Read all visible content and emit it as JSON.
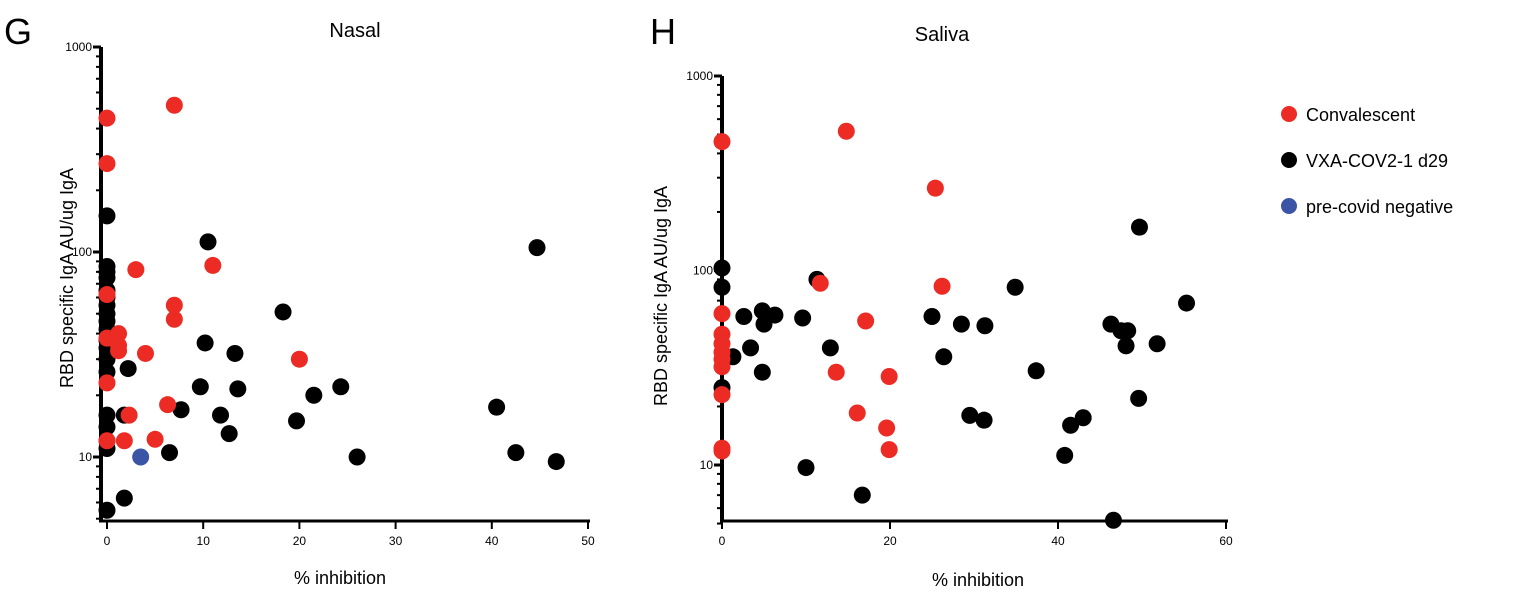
{
  "colors": {
    "Convalescent": "#ec2b24",
    "VXA-COV2-1 d29": "#000000",
    "pre-covid negative": "#3b55a6"
  },
  "legend": {
    "placement": "right",
    "entries": [
      {
        "label": "Convalescent",
        "color": "#ec2b24"
      },
      {
        "label": "VXA-COV2-1 d29",
        "color": "#000000"
      },
      {
        "label": "pre-covid negative",
        "color": "#3b55a6"
      }
    ]
  },
  "chart_data": [
    {
      "panel": "G",
      "type": "scatter",
      "title": "Nasal",
      "xlabel": "% inhibition",
      "ylabel": "RBD specific IgA AU/ug IgA",
      "xlim": [
        0,
        50
      ],
      "ylim": [
        5,
        1000
      ],
      "y_scale": "log",
      "xticks": [
        "0",
        "10",
        "20",
        "30",
        "40",
        "50"
      ],
      "yticks": [
        "10",
        "100",
        "1000"
      ],
      "grid": false,
      "series": [
        {
          "name": "Convalescent",
          "points": [
            [
              0,
              450
            ],
            [
              0,
              270
            ],
            [
              0,
              62
            ],
            [
              0,
              38
            ],
            [
              0,
              23
            ],
            [
              0,
              12
            ],
            [
              7,
              520
            ],
            [
              3,
              82
            ],
            [
              11,
              86
            ],
            [
              7,
              55
            ],
            [
              7,
              47
            ],
            [
              1.2,
              40
            ],
            [
              1.2,
              35
            ],
            [
              1.2,
              33
            ],
            [
              4,
              32
            ],
            [
              20,
              30
            ],
            [
              6.3,
              18
            ],
            [
              2.3,
              16
            ],
            [
              5,
              12.2
            ],
            [
              1.8,
              12
            ]
          ]
        },
        {
          "name": "VXA-COV2-1 d29",
          "points": [
            [
              0,
              150
            ],
            [
              0,
              85
            ],
            [
              0,
              80
            ],
            [
              0,
              75
            ],
            [
              0,
              65
            ],
            [
              0,
              60
            ],
            [
              0,
              55
            ],
            [
              0,
              50
            ],
            [
              0,
              46
            ],
            [
              0,
              42
            ],
            [
              0,
              37
            ],
            [
              0,
              34
            ],
            [
              0,
              30
            ],
            [
              0,
              26
            ],
            [
              0,
              16
            ],
            [
              0,
              14
            ],
            [
              0,
              12
            ],
            [
              0,
              11
            ],
            [
              0,
              5.5
            ],
            [
              10.5,
              112
            ],
            [
              10.2,
              36
            ],
            [
              13.3,
              32
            ],
            [
              18.3,
              51
            ],
            [
              9.7,
              22
            ],
            [
              13.6,
              21.5
            ],
            [
              24.3,
              22
            ],
            [
              21.5,
              20
            ],
            [
              7.7,
              17
            ],
            [
              11.8,
              16
            ],
            [
              19.7,
              15
            ],
            [
              12.7,
              13
            ],
            [
              2.2,
              27
            ],
            [
              1.8,
              16
            ],
            [
              6.5,
              10.5
            ],
            [
              26,
              10
            ],
            [
              1.8,
              6.3
            ],
            [
              40.5,
              17.5
            ],
            [
              42.5,
              10.5
            ],
            [
              46.7,
              9.5
            ],
            [
              44.7,
              105
            ]
          ]
        },
        {
          "name": "pre-covid negative",
          "points": [
            [
              3.5,
              10
            ]
          ]
        }
      ]
    },
    {
      "panel": "H",
      "type": "scatter",
      "title": "Saliva",
      "xlabel": "% inhibition",
      "ylabel": "RBD specific IgA AU/ug IgA",
      "xlim": [
        0,
        60
      ],
      "ylim": [
        5,
        1000
      ],
      "y_scale": "log",
      "xticks": [
        "0",
        "20",
        "40",
        "60"
      ],
      "yticks": [
        "10",
        "100",
        "1000"
      ],
      "grid": false,
      "series": [
        {
          "name": "Convalescent",
          "points": [
            [
              0,
              460
            ],
            [
              0,
              60
            ],
            [
              0,
              47
            ],
            [
              0,
              42
            ],
            [
              0,
              38
            ],
            [
              0,
              35
            ],
            [
              0,
              32
            ],
            [
              0,
              23
            ],
            [
              0,
              12.2
            ],
            [
              0,
              11.8
            ],
            [
              14.8,
              520
            ],
            [
              25.4,
              265
            ],
            [
              26.2,
              83
            ],
            [
              11.7,
              86
            ],
            [
              17.1,
              55
            ],
            [
              13.6,
              30
            ],
            [
              19.9,
              28.5
            ],
            [
              16.1,
              18.5
            ],
            [
              19.6,
              15.5
            ],
            [
              19.9,
              12
            ]
          ]
        },
        {
          "name": "VXA-COV2-1 d29",
          "points": [
            [
              0,
              103
            ],
            [
              0,
              82
            ],
            [
              0,
              25
            ],
            [
              1.3,
              36
            ],
            [
              2.6,
              58
            ],
            [
              3.4,
              40
            ],
            [
              4.8,
              62
            ],
            [
              5.0,
              53
            ],
            [
              6.3,
              59
            ],
            [
              4.8,
              30
            ],
            [
              9.6,
              57
            ],
            [
              12.9,
              40
            ],
            [
              11.3,
              90
            ],
            [
              10.0,
              9.7
            ],
            [
              16.7,
              7
            ],
            [
              25,
              58
            ],
            [
              26.4,
              36
            ],
            [
              28.5,
              53
            ],
            [
              31.3,
              52
            ],
            [
              29.5,
              18
            ],
            [
              31.2,
              17
            ],
            [
              34.9,
              82
            ],
            [
              37.4,
              30.5
            ],
            [
              41.5,
              16
            ],
            [
              43,
              17.5
            ],
            [
              40.8,
              11.2
            ],
            [
              46.3,
              53
            ],
            [
              47.5,
              49
            ],
            [
              48.1,
              41
            ],
            [
              48.3,
              49
            ],
            [
              49.7,
              167
            ],
            [
              49.6,
              22
            ],
            [
              51.8,
              42
            ],
            [
              55.3,
              68
            ],
            [
              46.6,
              5.2
            ]
          ]
        }
      ]
    }
  ]
}
